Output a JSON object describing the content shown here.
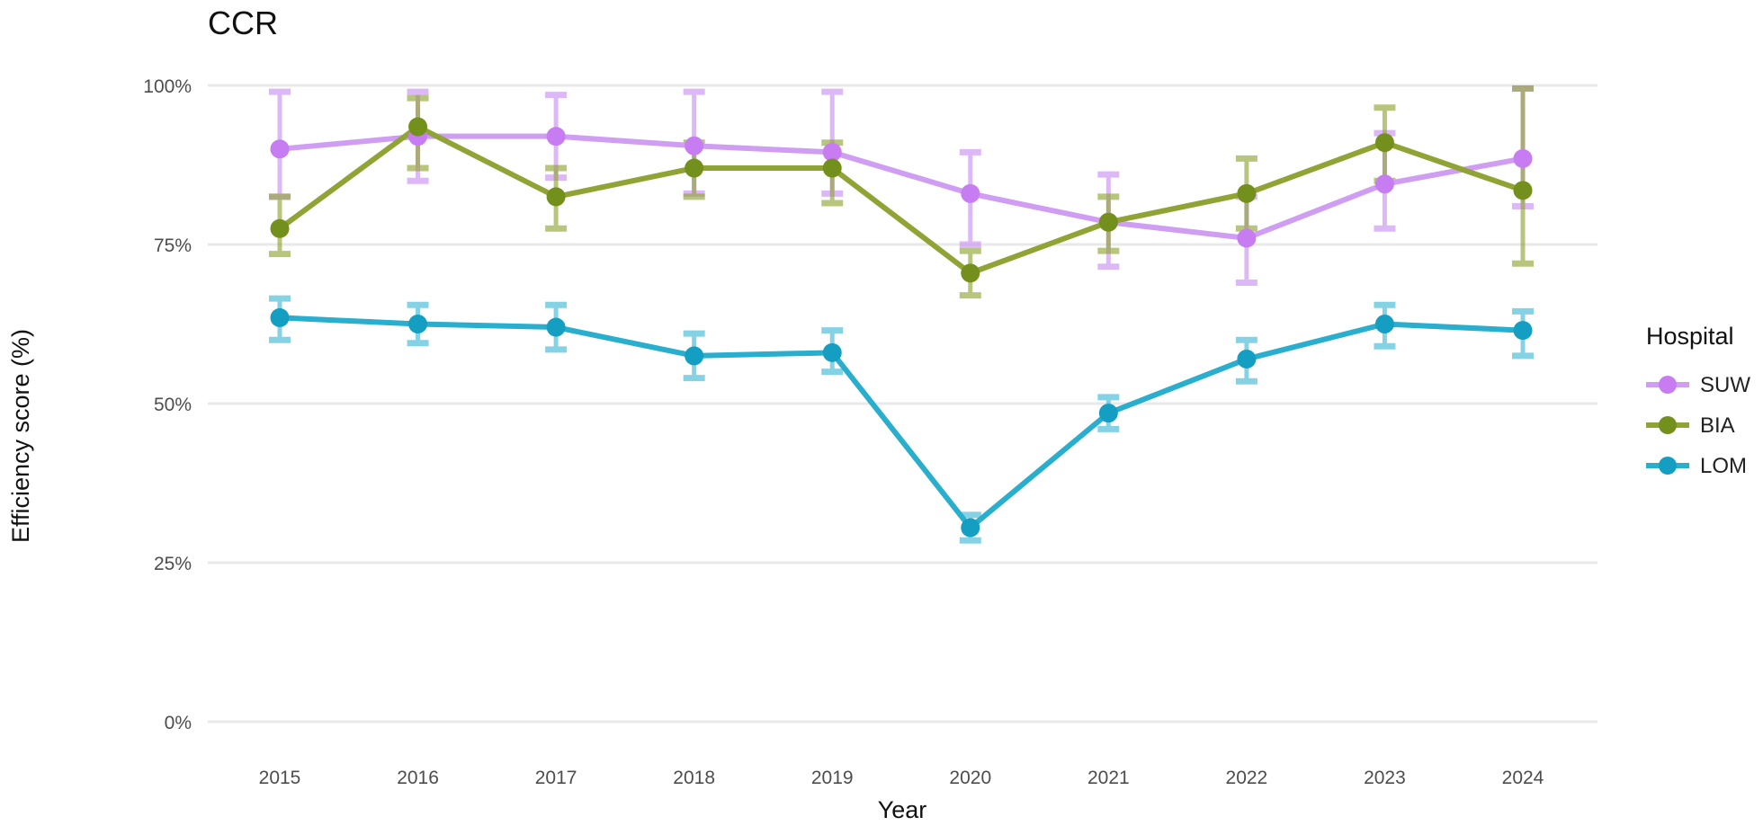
{
  "title": "CCR",
  "axes": {
    "y_title": "Efficiency score (%)",
    "x_title": "Year",
    "y_tick_labels": [
      "100%",
      "75%",
      "50%",
      "25%",
      "0%"
    ],
    "y_tick_values": [
      100,
      75,
      50,
      25,
      0
    ],
    "x_tick_labels": [
      "2015",
      "2016",
      "2017",
      "2018",
      "2019",
      "2020",
      "2021",
      "2022",
      "2023",
      "2024"
    ]
  },
  "legend": {
    "title": "Hospital",
    "items": [
      {
        "label": "SUW",
        "line_color": "#cf9ef2",
        "marker_color": "#c77cf2"
      },
      {
        "label": "BIA",
        "line_color": "#90a335",
        "marker_color": "#74901c"
      },
      {
        "label": "LOM",
        "line_color": "#2aaecd",
        "marker_color": "#149fc2"
      }
    ]
  },
  "chart_data": {
    "type": "line",
    "title": "CCR",
    "xlabel": "Year",
    "ylabel": "Efficiency score (%)",
    "ylim": [
      0,
      100
    ],
    "grid": "horizontal-only",
    "legend_position": "right",
    "x": [
      2015,
      2016,
      2017,
      2018,
      2019,
      2020,
      2021,
      2022,
      2023,
      2024
    ],
    "series": [
      {
        "name": "SUW",
        "line_color": "#cf9ef2",
        "marker_color": "#c77cf2",
        "error_color": "#c98ef2",
        "values": [
          90,
          92,
          92,
          90.5,
          89.5,
          83,
          78.5,
          76,
          84.5,
          88.5
        ],
        "err_lo": [
          82.5,
          85,
          85.5,
          83,
          83,
          75,
          71.5,
          69,
          77.5,
          81
        ],
        "err_hi": [
          99,
          99,
          98.5,
          99,
          99,
          89.5,
          86,
          82.5,
          92.5,
          99.5
        ]
      },
      {
        "name": "BIA",
        "line_color": "#90a335",
        "marker_color": "#74901c",
        "error_color": "#8da32f",
        "values": [
          77.5,
          93.5,
          82.5,
          87,
          87,
          70.5,
          78.5,
          83,
          91,
          83.5
        ],
        "err_lo": [
          73.5,
          87,
          77.5,
          82.5,
          81.5,
          67,
          74,
          77.5,
          85,
          72
        ],
        "err_hi": [
          82.5,
          98,
          87,
          91,
          91,
          74,
          82.5,
          88.5,
          96.5,
          99.5
        ]
      },
      {
        "name": "LOM",
        "line_color": "#2aaecd",
        "marker_color": "#149fc2",
        "error_color": "#3db7d6",
        "values": [
          63.5,
          62.5,
          62,
          57.5,
          58,
          30.5,
          48.5,
          57,
          62.5,
          61.5
        ],
        "err_lo": [
          60,
          59.5,
          58.5,
          54,
          55,
          28.5,
          46,
          53.5,
          59,
          57.5
        ],
        "err_hi": [
          66.5,
          65.5,
          65.5,
          61,
          61.5,
          32.5,
          51,
          60,
          65.5,
          64.5
        ]
      }
    ]
  }
}
